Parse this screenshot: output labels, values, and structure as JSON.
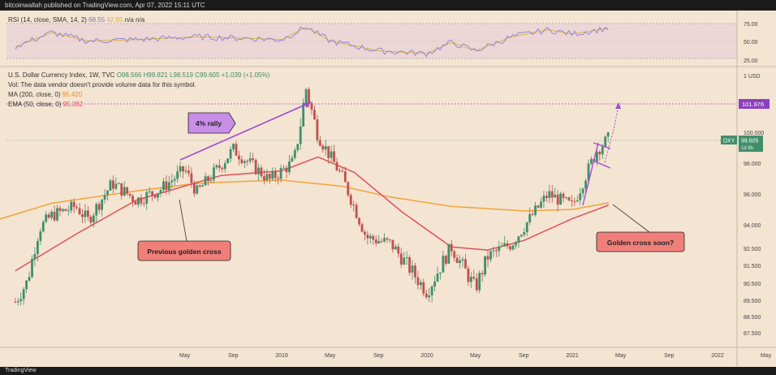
{
  "header": {
    "published": "bitcoinwallah published on TradingView.com, Apr 07, 2022 15:11 UTC"
  },
  "footer": {
    "brand": "TradingView"
  },
  "rsi_panel": {
    "label_prefix": "RSI (14, close, SMA, 14, 2)",
    "value": "68.55",
    "value2": "62.85",
    "suffix": "n/a n/a",
    "ticks": [
      "75.00",
      "50.00",
      "25.00"
    ]
  },
  "legend": {
    "title": "U.S. Dollar Currency Index, 1W, TVC",
    "ohlc": "O98.566 H99.821 L98.519 C99.605 +1.039 (+1.05%)",
    "vol": "Vol: The data vendor doesn't provide volume data for this symbol.",
    "ma_label": "MA (200, close, 0)",
    "ma_value": "95.420",
    "ema_label": "EMA (50, close, 0)",
    "ema_value": "95.282"
  },
  "price_axis": {
    "unit": "1 USD",
    "ticks": [
      "100.000",
      "98.000",
      "96.000",
      "94.000",
      "92.500",
      "91.500",
      "90.500",
      "89.500",
      "88.500",
      "87.500"
    ],
    "target_label": "101.976",
    "last_symbol": "DXY",
    "last_value": "99.605",
    "last_countdown": "1d 8h"
  },
  "annotations": {
    "rally": "4% rally",
    "previous_cross": "Previous golden cross",
    "cross_soon": "Golden cross soon?"
  },
  "colors": {
    "bg": "#f4e4d2",
    "up": "#3f8f6b",
    "down": "#c0504d",
    "ma200": "#f2a33a",
    "ema50": "#e0505a",
    "purple": "#a24ad0",
    "rsi": "#8a7fd6"
  },
  "chart_data": {
    "type": "candlestick",
    "title": "U.S. Dollar Currency Index, 1W, TVC",
    "x_ticks": [
      "May",
      "Sep",
      "2019",
      "May",
      "Sep",
      "2020",
      "May",
      "Sep",
      "2021",
      "May",
      "Sep",
      "2022",
      "May",
      "Sep",
      "2023"
    ],
    "ylim": [
      87.0,
      102.8
    ],
    "anchors": [
      [
        "2018-03",
        89.4
      ],
      [
        "2018-04",
        90.6
      ],
      [
        "2018-05",
        93.8
      ],
      [
        "2018-06",
        94.6
      ],
      [
        "2018-08",
        95.2
      ],
      [
        "2018-09",
        94.3
      ],
      [
        "2018-11",
        96.7
      ],
      [
        "2019-01",
        95.6
      ],
      [
        "2019-03",
        96.3
      ],
      [
        "2019-05",
        97.6
      ],
      [
        "2019-06",
        96.1
      ],
      [
        "2019-08",
        97.9
      ],
      [
        "2019-09",
        98.9
      ],
      [
        "2019-12",
        96.9
      ],
      [
        "2020-02",
        98.1
      ],
      [
        "2020-03",
        102.3
      ],
      [
        "2020-04",
        99.8
      ],
      [
        "2020-06",
        97.1
      ],
      [
        "2020-08",
        93.2
      ],
      [
        "2020-10",
        92.8
      ],
      [
        "2021-01",
        90.0
      ],
      [
        "2021-03",
        92.6
      ],
      [
        "2021-05",
        90.2
      ],
      [
        "2021-06",
        92.0
      ],
      [
        "2021-08",
        92.8
      ],
      [
        "2021-11",
        96.0
      ],
      [
        "2022-01",
        95.2
      ],
      [
        "2022-03",
        98.8
      ],
      [
        "2022-04",
        99.6
      ]
    ],
    "ma200": [
      [
        "2018-01",
        94.2
      ],
      [
        "2018-06",
        95.4
      ],
      [
        "2019-01",
        96.2
      ],
      [
        "2019-06",
        96.7
      ],
      [
        "2020-01",
        96.9
      ],
      [
        "2020-06",
        96.5
      ],
      [
        "2020-10",
        95.8
      ],
      [
        "2021-03",
        95.2
      ],
      [
        "2021-09",
        94.9
      ],
      [
        "2022-01",
        95.0
      ],
      [
        "2022-04",
        95.42
      ]
    ],
    "ema50": [
      [
        "2018-03",
        91.2
      ],
      [
        "2018-08",
        93.4
      ],
      [
        "2019-01",
        95.6
      ],
      [
        "2019-08",
        97.2
      ],
      [
        "2020-01",
        97.5
      ],
      [
        "2020-04",
        98.4
      ],
      [
        "2020-07",
        97.4
      ],
      [
        "2020-11",
        94.8
      ],
      [
        "2021-03",
        92.6
      ],
      [
        "2021-06",
        92.4
      ],
      [
        "2021-09",
        93.0
      ],
      [
        "2022-01",
        94.4
      ],
      [
        "2022-04",
        95.28
      ]
    ],
    "rsi_anchors": [
      [
        "2018-03",
        42
      ],
      [
        "2018-06",
        62
      ],
      [
        "2018-09",
        50
      ],
      [
        "2019-01",
        52
      ],
      [
        "2019-06",
        56
      ],
      [
        "2019-10",
        54
      ],
      [
        "2020-01",
        52
      ],
      [
        "2020-03",
        70
      ],
      [
        "2020-05",
        50
      ],
      [
        "2020-09",
        36
      ],
      [
        "2021-01",
        32
      ],
      [
        "2021-03",
        48
      ],
      [
        "2021-05",
        36
      ],
      [
        "2021-08",
        56
      ],
      [
        "2021-11",
        66
      ],
      [
        "2022-01",
        60
      ],
      [
        "2022-04",
        68.55
      ]
    ]
  }
}
